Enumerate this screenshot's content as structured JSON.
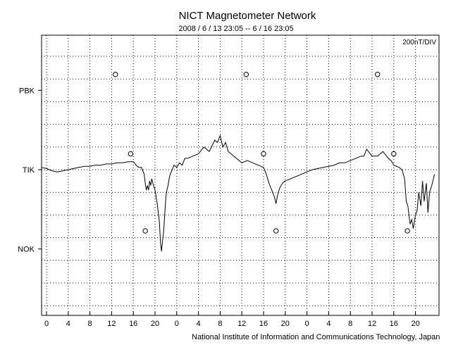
{
  "chart_data": {
    "type": "line",
    "title": "NICT Magnetometer Network",
    "subtitle": "2008 / 6 / 13   23:05 --  6 / 16   23:05",
    "scale_label": "200nT/DIV",
    "credit": "National Institute of Information and Communications Technology, Japan",
    "grid": "dotted",
    "x_tick_labels": [
      "0",
      "4",
      "8",
      "12",
      "16",
      "20",
      "0",
      "4",
      "8",
      "12",
      "16",
      "20",
      "0",
      "4",
      "8",
      "12",
      "16",
      "20"
    ],
    "x_tick_hours": [
      0,
      4,
      8,
      12,
      16,
      20,
      24,
      28,
      32,
      36,
      40,
      44,
      48,
      52,
      56,
      60,
      64,
      68
    ],
    "xlim": [
      -1,
      72
    ],
    "ylim_div": [
      -6,
      6
    ],
    "station_labels": [
      {
        "name": "PBK",
        "baseline_div": 3.5
      },
      {
        "name": "TIK",
        "baseline_div": 0
      },
      {
        "name": "NOK",
        "baseline_div": -3.5
      }
    ],
    "circle_markers": [
      {
        "hour": 12.7,
        "div": 4.2
      },
      {
        "hour": 36.8,
        "div": 4.2
      },
      {
        "hour": 61.0,
        "div": 4.2
      },
      {
        "hour": 15.5,
        "div": 0.7
      },
      {
        "hour": 40.0,
        "div": 0.7
      },
      {
        "hour": 64.0,
        "div": 0.7
      },
      {
        "hour": 18.2,
        "div": -2.7
      },
      {
        "hour": 42.3,
        "div": -2.7
      },
      {
        "hour": 66.5,
        "div": -2.7
      }
    ],
    "series": [
      {
        "x": [
          -1,
          0,
          1,
          2,
          3,
          4,
          5,
          6,
          7,
          8,
          9,
          10,
          11,
          12,
          13,
          14,
          15,
          16,
          16.5,
          17,
          17.5,
          18,
          18.2,
          18.4,
          18.6,
          18.8,
          19,
          19.2,
          19.4,
          19.6,
          20,
          20.4,
          20.8,
          21,
          21.2,
          21.4,
          21.6,
          21.8,
          22,
          22.2,
          22.4,
          22.6,
          22.8,
          23,
          23.5,
          24,
          24.5,
          25,
          25.5,
          26,
          27,
          28,
          29,
          29.5,
          30,
          31,
          31.5,
          32,
          32.5,
          33,
          33.5,
          34,
          35,
          36,
          37,
          38,
          39,
          40,
          40.5,
          41,
          41.5,
          42,
          42.3,
          42.6,
          43,
          43.5,
          44,
          45,
          46,
          47,
          48,
          49,
          50,
          51,
          52,
          53,
          54,
          55,
          56,
          57,
          58,
          58.5,
          59,
          60,
          61,
          61.5,
          62,
          63,
          63.5,
          64,
          65,
          65.5,
          66,
          66.3,
          66.6,
          67,
          67.3,
          67.6,
          68,
          68.3,
          68.6,
          69,
          69.3,
          69.6,
          70,
          70.3,
          70.6,
          71,
          71.5
        ],
        "y": [
          0.1,
          0.05,
          -0.05,
          -0.1,
          -0.05,
          0,
          0.05,
          0.1,
          0.15,
          0.15,
          0.2,
          0.2,
          0.25,
          0.25,
          0.3,
          0.3,
          0.35,
          0.35,
          0.2,
          0.1,
          0.1,
          -0.2,
          -0.6,
          -0.9,
          -0.7,
          -0.9,
          -0.5,
          -0.7,
          -0.4,
          -0.6,
          -0.9,
          -1.5,
          -2.3,
          -3.2,
          -3.6,
          -3.1,
          -2.7,
          -1.9,
          -1.2,
          -0.9,
          -0.7,
          -0.4,
          -0.2,
          -0.1,
          0.2,
          0.1,
          0.3,
          0.2,
          0.5,
          0.5,
          0.6,
          0.7,
          1.0,
          0.9,
          0.8,
          1.3,
          1.2,
          1.5,
          1.0,
          1.2,
          0.8,
          0.7,
          0.5,
          0.3,
          0.4,
          0.3,
          0.2,
          0.1,
          -0.2,
          -0.6,
          -0.9,
          -1.2,
          -1.5,
          -1.1,
          -0.8,
          -0.6,
          -0.5,
          -0.4,
          -0.3,
          -0.2,
          -0.1,
          0,
          0.05,
          0.1,
          0.15,
          0.2,
          0.3,
          0.3,
          0.4,
          0.5,
          0.6,
          0.6,
          0.9,
          0.6,
          0.6,
          0.7,
          0.8,
          0.5,
          0.4,
          0.2,
          0.1,
          0.0,
          -0.4,
          -1.4,
          -1.6,
          -2.4,
          -2.2,
          -2.6,
          -2.0,
          -1.8,
          -1.0,
          -1.6,
          -0.5,
          -1.4,
          -0.6,
          -1.9,
          -1.0,
          -0.7,
          -0.2
        ]
      }
    ]
  }
}
